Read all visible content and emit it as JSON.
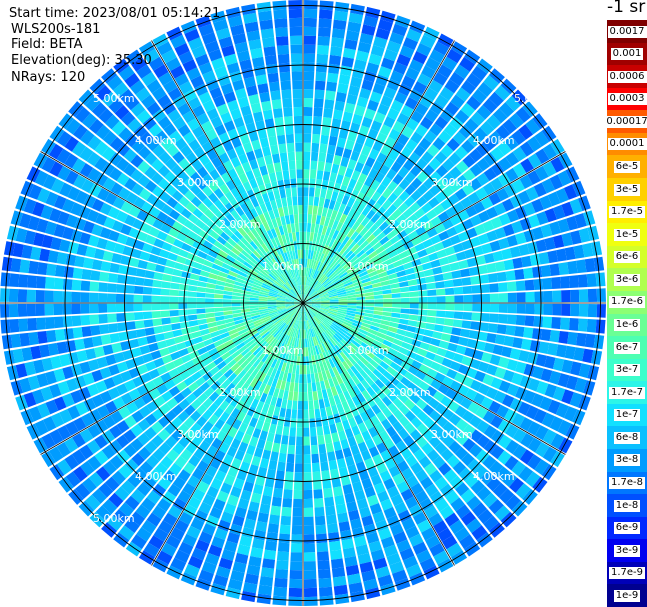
{
  "header": {
    "start_time": "Start time: 2023/08/01 05:14:21",
    "instrument": "WLS200s-181",
    "field": "Field: BETA",
    "elevation": "Elevation(deg): 35.30",
    "nrays": "NRays: 120"
  },
  "colorbar": {
    "unit_label": "-1 sr",
    "labels": [
      "0.0017",
      "0.001",
      "0.0006",
      "0.0003",
      "0.00017",
      "0.0001",
      "6e-5",
      "3e-5",
      "1.7e-5",
      "1e-5",
      "6e-6",
      "3e-6",
      "1.7e-6",
      "1e-6",
      "6e-7",
      "3e-7",
      "1.7e-7",
      "1e-7",
      "6e-8",
      "3e-8",
      "1.7e-8",
      "1e-8",
      "6e-9",
      "3e-9",
      "1.7e-9",
      "1e-9"
    ],
    "colors": [
      "#800000",
      "#a00000",
      "#c80000",
      "#ff0000",
      "#ff5a00",
      "#ff8c00",
      "#ffb000",
      "#ffd000",
      "#ffee00",
      "#f0ff10",
      "#d4ff2a",
      "#b0ff4f",
      "#8cff73",
      "#6aff95",
      "#4dffb2",
      "#3cffcc",
      "#2cf5e8",
      "#12e0ff",
      "#0ac0ff",
      "#009cff",
      "#0077ff",
      "#0050ff",
      "#0028ff",
      "#0000f0",
      "#0000b8",
      "#000090"
    ]
  },
  "range_labels": {
    "r1": "1.00km",
    "r2": "2.00km",
    "r3": "3.00km",
    "r4": "4.00km",
    "r5": "5.00km"
  },
  "plot": {
    "type": "ppi",
    "nrays": 120,
    "max_range_km": 5.3,
    "range_rings_km": [
      1,
      2,
      3,
      4,
      5
    ]
  }
}
